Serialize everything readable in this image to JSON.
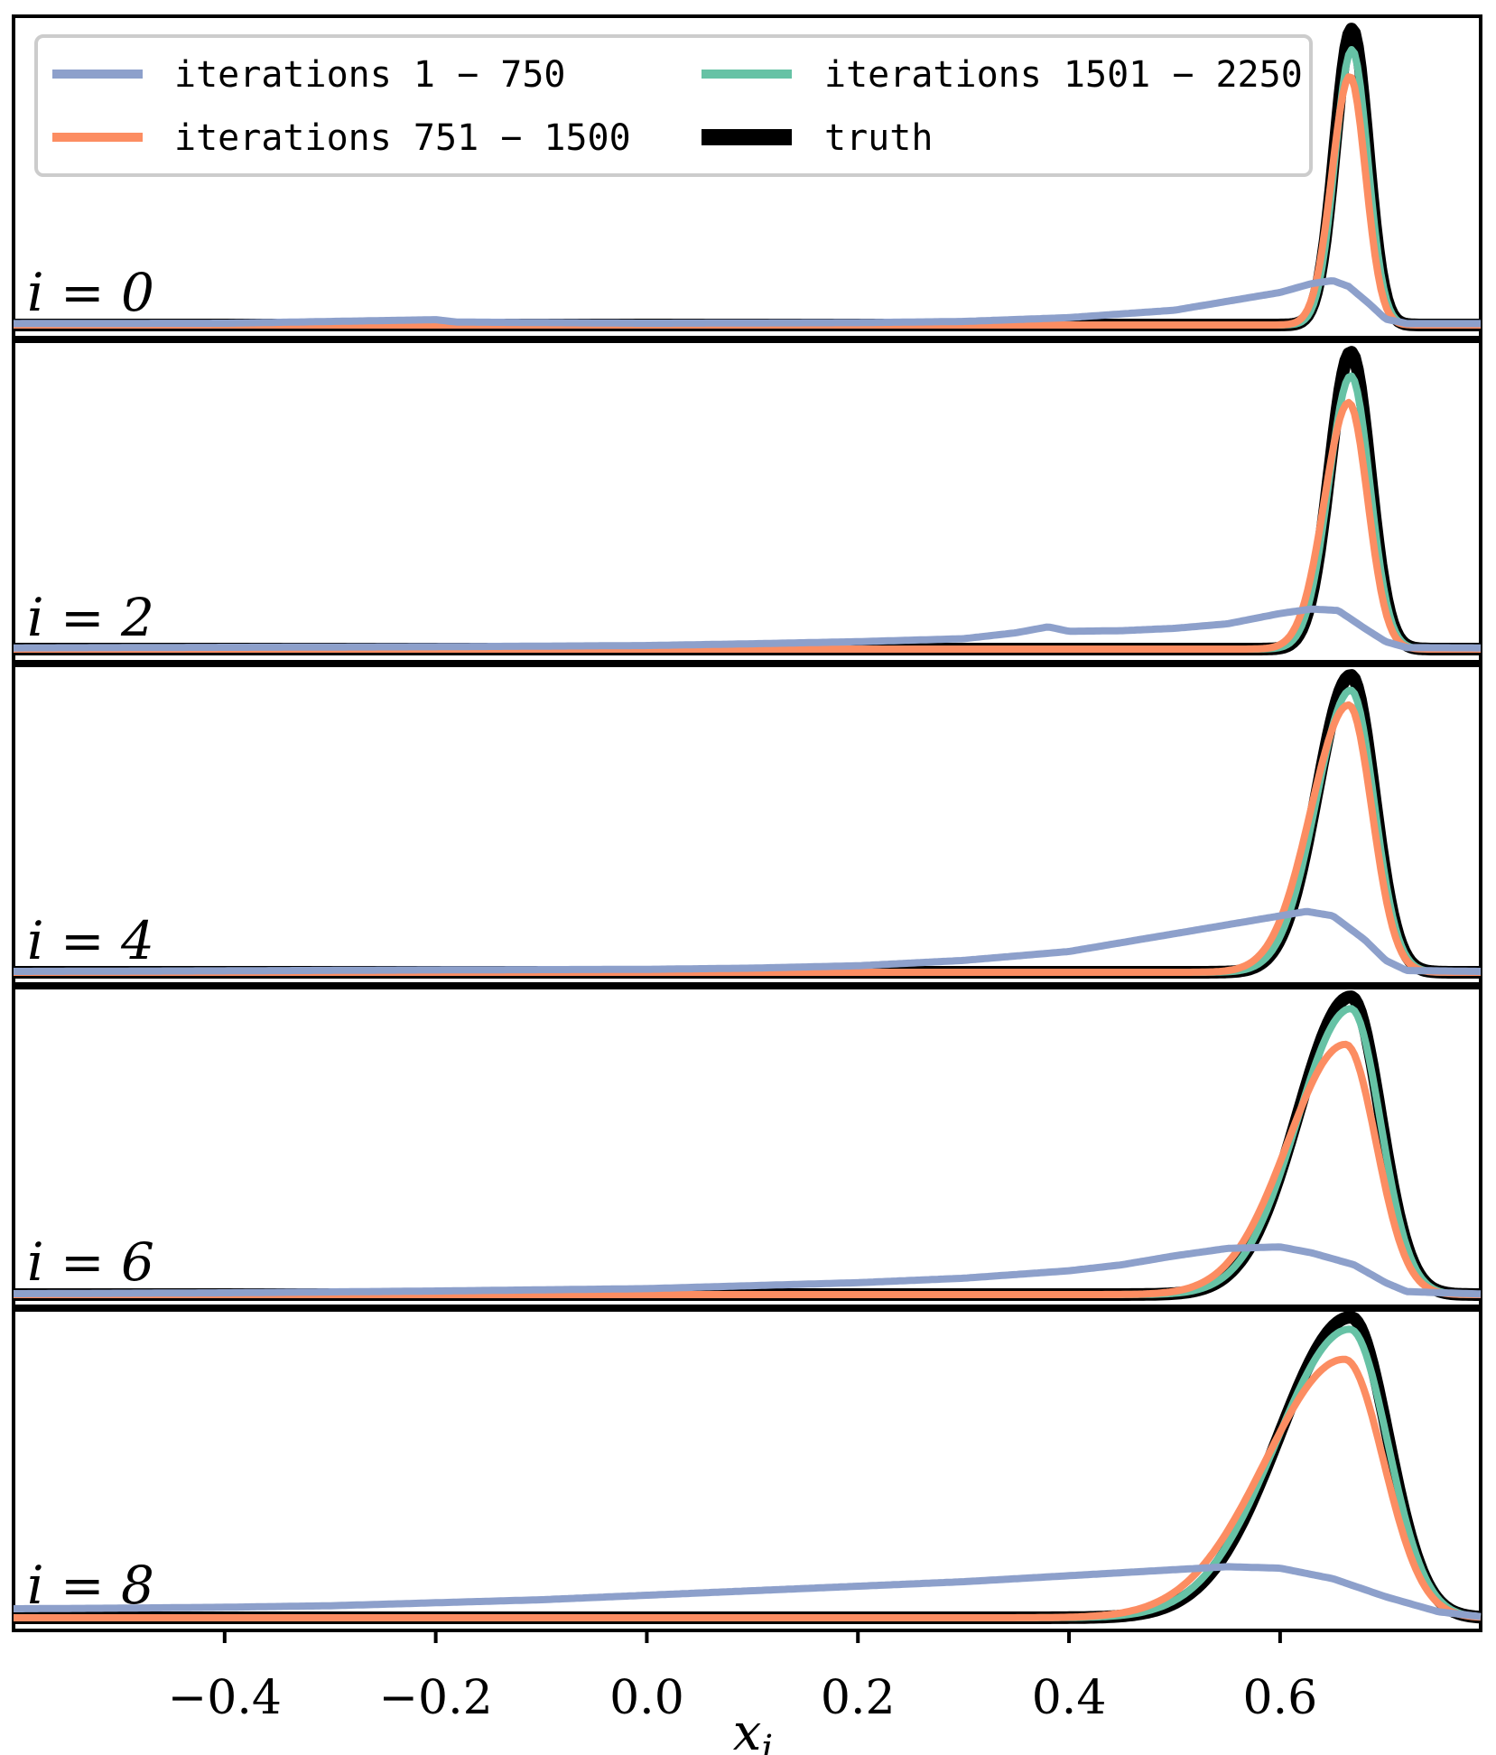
{
  "chart_data": {
    "type": "line",
    "title": "",
    "xlabel": "x_i",
    "ylabel": "",
    "xlim": [
      -0.6,
      0.79
    ],
    "grid": false,
    "x_ticks": [
      -0.4,
      -0.2,
      0.0,
      0.2,
      0.4,
      0.6
    ],
    "x_tick_labels": [
      "−0.4",
      "−0.2",
      "0.0",
      "0.2",
      "0.4",
      "0.6"
    ],
    "legend": {
      "placement": "top",
      "entries": [
        {
          "label": "iterations 1 − 750",
          "color": "#8da0cb"
        },
        {
          "label": "iterations 751 − 1500",
          "color": "#fc8d62"
        },
        {
          "label": "iterations 1501 − 2250",
          "color": "#66c2a5"
        },
        {
          "label": "truth",
          "color": "#000000"
        }
      ]
    },
    "panels": [
      {
        "label": "i = 0",
        "truth": {
          "peak": 0.668,
          "left_width": 0.016,
          "right_width": 0.015,
          "height": 1.0
        },
        "late": {
          "peak": 0.668,
          "left_width": 0.016,
          "right_width": 0.015,
          "height": 0.93
        },
        "mid": {
          "peak": 0.666,
          "left_width": 0.017,
          "right_width": 0.015,
          "height": 0.84
        },
        "early_points": [
          [
            -0.6,
            0.005
          ],
          [
            -0.4,
            0.006
          ],
          [
            -0.2,
            0.018
          ],
          [
            -0.18,
            0.01
          ],
          [
            0.0,
            0.006
          ],
          [
            0.2,
            0.008
          ],
          [
            0.3,
            0.012
          ],
          [
            0.4,
            0.025
          ],
          [
            0.5,
            0.05
          ],
          [
            0.55,
            0.08
          ],
          [
            0.6,
            0.11
          ],
          [
            0.63,
            0.14
          ],
          [
            0.65,
            0.15
          ],
          [
            0.665,
            0.13
          ],
          [
            0.685,
            0.07
          ],
          [
            0.7,
            0.02
          ],
          [
            0.72,
            0.005
          ],
          [
            0.79,
            0.005
          ]
        ]
      },
      {
        "label": "i = 2",
        "truth": {
          "peak": 0.667,
          "left_width": 0.02,
          "right_width": 0.018,
          "height": 1.0
        },
        "late": {
          "peak": 0.667,
          "left_width": 0.021,
          "right_width": 0.018,
          "height": 0.92
        },
        "mid": {
          "peak": 0.665,
          "left_width": 0.023,
          "right_width": 0.018,
          "height": 0.83
        },
        "early_points": [
          [
            -0.6,
            0.004
          ],
          [
            -0.4,
            0.006
          ],
          [
            -0.2,
            0.008
          ],
          [
            0.0,
            0.012
          ],
          [
            0.1,
            0.018
          ],
          [
            0.2,
            0.025
          ],
          [
            0.3,
            0.035
          ],
          [
            0.35,
            0.055
          ],
          [
            0.38,
            0.075
          ],
          [
            0.4,
            0.06
          ],
          [
            0.45,
            0.062
          ],
          [
            0.5,
            0.07
          ],
          [
            0.55,
            0.085
          ],
          [
            0.6,
            0.12
          ],
          [
            0.63,
            0.135
          ],
          [
            0.655,
            0.13
          ],
          [
            0.68,
            0.07
          ],
          [
            0.7,
            0.025
          ],
          [
            0.72,
            0.005
          ],
          [
            0.79,
            0.004
          ]
        ]
      },
      {
        "label": "i = 4",
        "truth": {
          "peak": 0.667,
          "left_width": 0.032,
          "right_width": 0.022,
          "height": 1.0
        },
        "late": {
          "peak": 0.667,
          "left_width": 0.033,
          "right_width": 0.022,
          "height": 0.95
        },
        "mid": {
          "peak": 0.665,
          "left_width": 0.036,
          "right_width": 0.022,
          "height": 0.9
        },
        "early_points": [
          [
            -0.6,
            0.003
          ],
          [
            -0.4,
            0.005
          ],
          [
            -0.2,
            0.008
          ],
          [
            0.0,
            0.01
          ],
          [
            0.1,
            0.014
          ],
          [
            0.2,
            0.022
          ],
          [
            0.3,
            0.04
          ],
          [
            0.4,
            0.07
          ],
          [
            0.45,
            0.1
          ],
          [
            0.5,
            0.13
          ],
          [
            0.55,
            0.16
          ],
          [
            0.6,
            0.19
          ],
          [
            0.625,
            0.205
          ],
          [
            0.65,
            0.19
          ],
          [
            0.68,
            0.11
          ],
          [
            0.7,
            0.04
          ],
          [
            0.72,
            0.006
          ],
          [
            0.79,
            0.003
          ]
        ]
      },
      {
        "label": "i = 6",
        "truth": {
          "peak": 0.667,
          "left_width": 0.05,
          "right_width": 0.028,
          "height": 1.0
        },
        "late": {
          "peak": 0.667,
          "left_width": 0.051,
          "right_width": 0.028,
          "height": 0.96
        },
        "mid": {
          "peak": 0.662,
          "left_width": 0.055,
          "right_width": 0.029,
          "height": 0.84
        },
        "early_points": [
          [
            -0.6,
            0.003
          ],
          [
            -0.4,
            0.006
          ],
          [
            -0.2,
            0.012
          ],
          [
            0.0,
            0.02
          ],
          [
            0.1,
            0.03
          ],
          [
            0.2,
            0.04
          ],
          [
            0.3,
            0.055
          ],
          [
            0.4,
            0.08
          ],
          [
            0.45,
            0.1
          ],
          [
            0.5,
            0.13
          ],
          [
            0.55,
            0.155
          ],
          [
            0.6,
            0.16
          ],
          [
            0.63,
            0.14
          ],
          [
            0.67,
            0.1
          ],
          [
            0.7,
            0.04
          ],
          [
            0.72,
            0.01
          ],
          [
            0.79,
            0.002
          ]
        ]
      },
      {
        "label": "i = 8",
        "truth": {
          "peak": 0.667,
          "left_width": 0.068,
          "right_width": 0.035,
          "height": 1.0
        },
        "late": {
          "peak": 0.666,
          "left_width": 0.07,
          "right_width": 0.036,
          "height": 0.96
        },
        "mid": {
          "peak": 0.661,
          "left_width": 0.075,
          "right_width": 0.037,
          "height": 0.86
        },
        "early_points": [
          [
            -0.6,
            0.03
          ],
          [
            -0.5,
            0.032
          ],
          [
            -0.4,
            0.035
          ],
          [
            -0.3,
            0.04
          ],
          [
            -0.2,
            0.05
          ],
          [
            -0.1,
            0.06
          ],
          [
            0.0,
            0.075
          ],
          [
            0.1,
            0.09
          ],
          [
            0.2,
            0.105
          ],
          [
            0.3,
            0.12
          ],
          [
            0.4,
            0.14
          ],
          [
            0.5,
            0.16
          ],
          [
            0.55,
            0.17
          ],
          [
            0.6,
            0.165
          ],
          [
            0.65,
            0.13
          ],
          [
            0.7,
            0.07
          ],
          [
            0.75,
            0.02
          ],
          [
            0.79,
            0.004
          ]
        ]
      }
    ]
  }
}
